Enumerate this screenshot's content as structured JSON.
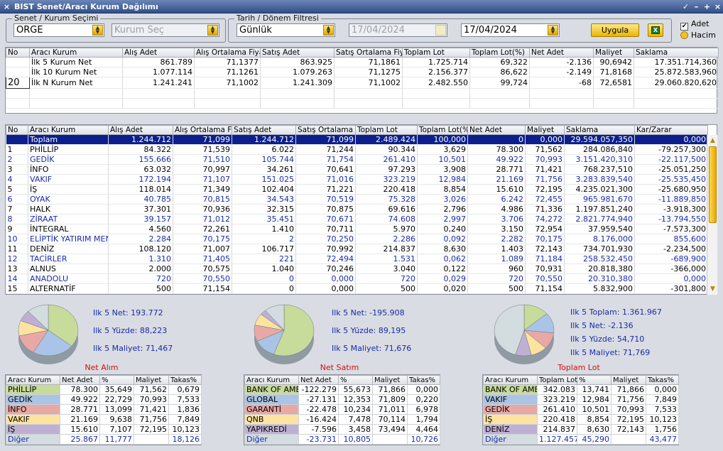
{
  "window": {
    "title": "BIST Senet/Aracı Kurum Dağılımı",
    "close": "×",
    "controls": [
      "✓",
      "–",
      "+",
      "×"
    ]
  },
  "filters": {
    "senet_group_label": "Senet / Kurum Seçimi",
    "senet_value": "ORGE",
    "kurum_placeholder": "Kurum Seç",
    "tarih_group_label": "Tarih / Dönem Filtresi",
    "period_value": "Günlük",
    "date_from": "17/04/2024",
    "date_to": "17/04/2024",
    "apply_label": "Uygula",
    "excel_icon": "X",
    "opt_adet": "Adet",
    "opt_hacim": "Hacim"
  },
  "summary": {
    "columns": [
      "No",
      "Aracı Kurum",
      "Alış Adet",
      "Alış Ortalama Fiyat",
      "Satış Adet",
      "Satış Ortalama Fiyat",
      "Toplam Lot",
      "Toplam Lot(%)",
      "Net Adet",
      "Maliyet",
      "Saklama"
    ],
    "rows": [
      [
        "",
        "İlk 5 Kurum Net",
        "861.789",
        "71,1377",
        "863.925",
        "71,1861",
        "1.725.714",
        "69,322",
        "-2.136",
        "90,6942",
        "17.351.714,360"
      ],
      [
        "",
        "İlk 10 Kurum Net",
        "1.077.114",
        "71,1261",
        "1.079.263",
        "71,1275",
        "2.156.377",
        "86,622",
        "-2.149",
        "71,8168",
        "25.872.583,960"
      ],
      [
        "20",
        "İlk N Kurum Net",
        "1.241.241",
        "71,1002",
        "1.241.309",
        "71,1002",
        "2.482.550",
        "99,724",
        "-68",
        "72,6581",
        "29.060.820,620"
      ]
    ]
  },
  "main": {
    "columns": [
      "No",
      "Aracı Kurum",
      "Alış Adet",
      "Alış Ortalama Fiy",
      "Satış Adet",
      "Satış Ortalama Fi",
      "Toplam Lot",
      "Toplam Lot(%",
      "Net Adet",
      "Maliyet",
      "Saklama",
      "Kar/Zarar"
    ],
    "rows": [
      [
        "",
        "Toplam",
        "1.244.712",
        "71,099",
        "1.244.712",
        "71,099",
        "2.489.424",
        "100,000",
        "0",
        "0,000",
        "29.594.057,350",
        "0,000"
      ],
      [
        "1",
        "PHİLLİP",
        "84.322",
        "71,539",
        "6.022",
        "71,244",
        "90.344",
        "3,629",
        "78.300",
        "71,562",
        "284.086,840",
        "-79.257,300"
      ],
      [
        "2",
        "GEDİK",
        "155.666",
        "71,510",
        "105.744",
        "71,754",
        "261.410",
        "10,501",
        "49.922",
        "70,993",
        "3.151.420,310",
        "-22.117,500"
      ],
      [
        "3",
        "İNFO",
        "63.032",
        "70,997",
        "34.261",
        "70,641",
        "97.293",
        "3,908",
        "28.771",
        "71,421",
        "768.237,510",
        "-25.051,250"
      ],
      [
        "4",
        "VAKIF",
        "172.194",
        "71,107",
        "151.025",
        "71,016",
        "323.219",
        "12,984",
        "21.169",
        "71,756",
        "3.283.839,540",
        "-25.535,450"
      ],
      [
        "5",
        "İŞ",
        "118.014",
        "71,349",
        "102.404",
        "71,221",
        "220.418",
        "8,854",
        "15.610",
        "72,195",
        "4.235.021,300",
        "-25.680,950"
      ],
      [
        "6",
        "OYAK",
        "40.785",
        "70,815",
        "34.543",
        "70,519",
        "75.328",
        "3,026",
        "6.242",
        "72,455",
        "965.981,670",
        "-11.889,850"
      ],
      [
        "7",
        "HALK",
        "37.301",
        "70,936",
        "32.315",
        "70,875",
        "69.616",
        "2,796",
        "4.986",
        "71,336",
        "1.197.851,240",
        "-3.918,300"
      ],
      [
        "8",
        "ZİRAAT",
        "39.157",
        "71,012",
        "35.451",
        "70,671",
        "74.608",
        "2,997",
        "3.706",
        "74,272",
        "2.821.774,940",
        "-13.794,550"
      ],
      [
        "9",
        "İNTEGRAL",
        "4.560",
        "72,261",
        "1.410",
        "70,711",
        "5.970",
        "0,240",
        "3.150",
        "72,954",
        "37.959,540",
        "-7.573,300"
      ],
      [
        "10",
        "ELİPTİK YATIRIM MEN",
        "2.284",
        "70,175",
        "2",
        "70,250",
        "2.286",
        "0,092",
        "2.282",
        "70,175",
        "8.176,000",
        "855,600"
      ],
      [
        "11",
        "DENİZ",
        "108.120",
        "71,007",
        "106.717",
        "70,992",
        "214.837",
        "8,630",
        "1.403",
        "72,143",
        "734.701,930",
        "-2.234,500"
      ],
      [
        "12",
        "TACİRLER",
        "1.310",
        "71,405",
        "221",
        "72,494",
        "1.531",
        "0,062",
        "1.089",
        "71,184",
        "258.532,450",
        "-689,900"
      ],
      [
        "13",
        "ALNUS",
        "2.000",
        "70,575",
        "1.040",
        "70,246",
        "3.040",
        "0,122",
        "960",
        "70,931",
        "20.818,380",
        "-366,000"
      ],
      [
        "14",
        "ANADOLU",
        "720",
        "70,550",
        "0",
        "0,000",
        "720",
        "0,029",
        "720",
        "70,550",
        "20.310,380",
        "0,000"
      ],
      [
        "15",
        "ALTERNATİF",
        "500",
        "71,154",
        "0",
        "0,000",
        "500",
        "0,020",
        "500",
        "71,154",
        "5.832,900",
        "-301,800"
      ]
    ]
  },
  "charts": [
    {
      "title": "Net Alım",
      "stats": [
        "Ilk 5 Net: 193.772",
        "Ilk 5 Yüzde: 88,223",
        "Ilk 5 Maliyet: 71,467"
      ],
      "columns": [
        "Aracı Kurum",
        "Net Adet",
        "%",
        "Maliyet",
        "Takas%"
      ],
      "rows": [
        [
          "PHİLLİP",
          "78.300",
          "35,649",
          "71,562",
          "0,679"
        ],
        [
          "GEDİK",
          "49.922",
          "22,729",
          "70,993",
          "7,533"
        ],
        [
          "İNFO",
          "28.771",
          "13,099",
          "71,421",
          "1,836"
        ],
        [
          "VAKIF",
          "21.169",
          "9,638",
          "71,756",
          "7,849"
        ],
        [
          "İŞ",
          "15.610",
          "7,107",
          "72,195",
          "10,123"
        ],
        [
          "Diğer",
          "25.867",
          "11,777",
          "",
          "18,126"
        ]
      ]
    },
    {
      "title": "Net Satım",
      "stats": [
        "Ilk 5 Net: -195.908",
        "Ilk 5 Yüzde: 89,195",
        "Ilk 5 Maliyet: 71,676"
      ],
      "columns": [
        "Aracı Kurum",
        "Net Adet",
        "%",
        "Maliyet",
        "Takas%"
      ],
      "rows": [
        [
          "BANK OF AME",
          "-122.279",
          "55,673",
          "71,866",
          "0,000"
        ],
        [
          "GLOBAL",
          "-27.131",
          "12,353",
          "71,809",
          "0,220"
        ],
        [
          "GARANTİ",
          "-22.478",
          "10,234",
          "71,011",
          "6,978"
        ],
        [
          "QNB",
          "-16.424",
          "7,478",
          "70,114",
          "1,794"
        ],
        [
          "YAPIKREDİ",
          "-7.596",
          "3,458",
          "73,494",
          "4,464"
        ],
        [
          "Diğer",
          "-23.731",
          "10,805",
          "",
          "10,726"
        ]
      ]
    },
    {
      "title": "Toplam Lot",
      "stats": [
        "Ilk 5 Toplam: 1.361.967",
        "Ilk 5 Net: -2.136",
        "Ilk 5 Yüzde: 54,710",
        "Ilk 5 Maliyet: 71,769"
      ],
      "columns": [
        "Aracı Kurum",
        "Toplam Lot",
        "%",
        "Maliyet",
        "Takas%"
      ],
      "rows": [
        [
          "BANK OF AME",
          "342.083",
          "13,741",
          "71,866",
          "0,000"
        ],
        [
          "VAKIF",
          "323.219",
          "12,984",
          "71,756",
          "7,849"
        ],
        [
          "GEDİK",
          "261.410",
          "10,501",
          "70,993",
          "7,533"
        ],
        [
          "İŞ",
          "220.418",
          "8,854",
          "72,195",
          "10,123"
        ],
        [
          "DENİZ",
          "214.837",
          "8,630",
          "72,143",
          "1,756"
        ],
        [
          "Diğer",
          "1.127.457",
          "45,290",
          "",
          "43,477"
        ]
      ]
    }
  ],
  "colors": {
    "slices": [
      "#c7db9a",
      "#a9c4e6",
      "#e8a8a5",
      "#fde3a0",
      "#bfb0d3",
      "#d3dde0"
    ],
    "selected_row": "#0c1f8c",
    "blue_text": "#1a2aa6",
    "accent": "#f0b800"
  }
}
